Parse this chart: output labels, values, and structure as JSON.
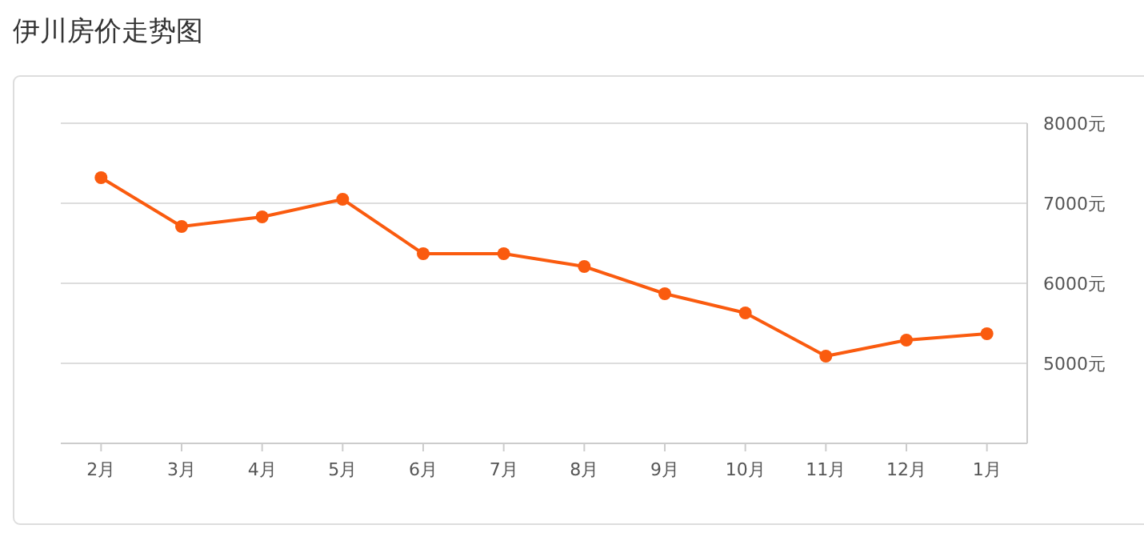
{
  "chart_data": {
    "type": "line",
    "title": "伊川房价走势图",
    "categories": [
      "2月",
      "3月",
      "4月",
      "5月",
      "6月",
      "7月",
      "8月",
      "9月",
      "10月",
      "11月",
      "12月",
      "1月"
    ],
    "series": [
      {
        "color": "#fa5b0f",
        "values": [
          7320,
          6710,
          6830,
          7050,
          6370,
          6370,
          6210,
          5870,
          5630,
          5090,
          5290,
          5370
        ]
      }
    ],
    "ylim": [
      4000,
      8000
    ],
    "yticks": [
      {
        "value": 4000,
        "label": null
      },
      {
        "value": 5000,
        "label": "5000元"
      },
      {
        "value": 6000,
        "label": "6000元"
      },
      {
        "value": 7000,
        "label": "7000元"
      },
      {
        "value": 8000,
        "label": "8000元"
      }
    ],
    "grid": "y",
    "marker": "circle",
    "line_style": "solid"
  }
}
